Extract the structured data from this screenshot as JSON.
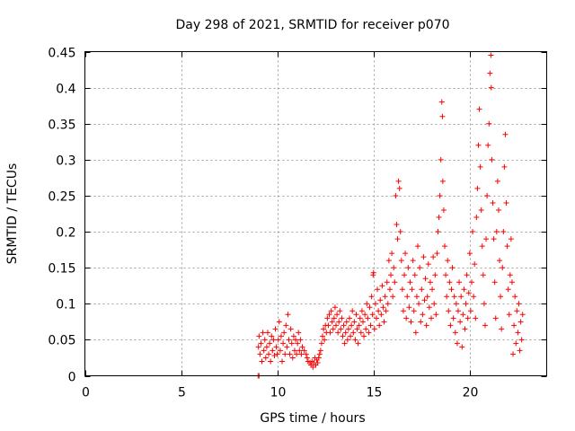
{
  "chart_data": {
    "type": "scatter",
    "title": "Day 298 of 2021, SRMTID for receiver p070",
    "xlabel": "GPS time / hours",
    "ylabel": "SRMTID / TECUs",
    "xlim": [
      0,
      24
    ],
    "ylim": [
      0,
      0.45
    ],
    "xticks": [
      0,
      5,
      10,
      15,
      20
    ],
    "xtick_labels": [
      "0",
      "5",
      "10",
      "15",
      "20"
    ],
    "yticks": [
      0,
      0.05,
      0.1,
      0.15,
      0.2,
      0.25,
      0.3,
      0.35,
      0.4,
      0.45
    ],
    "ytick_labels": [
      "0",
      "0.05",
      "0.1",
      "0.15",
      "0.2",
      "0.25",
      "0.3",
      "0.35",
      "0.4",
      "0.45"
    ],
    "grid": true,
    "marker": "plus",
    "series": [
      {
        "name": "p070",
        "color": "#ff0000",
        "points": [
          [
            9.0,
            0.0
          ],
          [
            9.05,
            0.0
          ],
          [
            9.02,
            0.04
          ],
          [
            9.05,
            0.055
          ],
          [
            9.1,
            0.03
          ],
          [
            9.15,
            0.045
          ],
          [
            9.2,
            0.02
          ],
          [
            9.25,
            0.06
          ],
          [
            9.3,
            0.035
          ],
          [
            9.35,
            0.05
          ],
          [
            9.4,
            0.025
          ],
          [
            9.45,
            0.04
          ],
          [
            9.5,
            0.06
          ],
          [
            9.55,
            0.03
          ],
          [
            9.6,
            0.045
          ],
          [
            9.65,
            0.02
          ],
          [
            9.7,
            0.055
          ],
          [
            9.75,
            0.035
          ],
          [
            9.8,
            0.05
          ],
          [
            9.85,
            0.028
          ],
          [
            9.9,
            0.065
          ],
          [
            9.95,
            0.04
          ],
          [
            10.0,
            0.03
          ],
          [
            10.05,
            0.05
          ],
          [
            10.1,
            0.075
          ],
          [
            10.15,
            0.035
          ],
          [
            10.2,
            0.055
          ],
          [
            10.25,
            0.02
          ],
          [
            10.3,
            0.045
          ],
          [
            10.35,
            0.06
          ],
          [
            10.4,
            0.03
          ],
          [
            10.45,
            0.07
          ],
          [
            10.5,
            0.04
          ],
          [
            10.55,
            0.085
          ],
          [
            10.6,
            0.05
          ],
          [
            10.65,
            0.03
          ],
          [
            10.7,
            0.065
          ],
          [
            10.75,
            0.045
          ],
          [
            10.8,
            0.025
          ],
          [
            10.85,
            0.055
          ],
          [
            10.9,
            0.035
          ],
          [
            10.95,
            0.05
          ],
          [
            11.0,
            0.03
          ],
          [
            11.05,
            0.045
          ],
          [
            11.1,
            0.06
          ],
          [
            11.15,
            0.035
          ],
          [
            11.2,
            0.05
          ],
          [
            11.25,
            0.03
          ],
          [
            11.3,
            0.04
          ],
          [
            11.4,
            0.035
          ],
          [
            11.5,
            0.03
          ],
          [
            11.55,
            0.025
          ],
          [
            11.6,
            0.02
          ],
          [
            11.7,
            0.018
          ],
          [
            11.75,
            0.015
          ],
          [
            11.8,
            0.02
          ],
          [
            11.85,
            0.012
          ],
          [
            11.9,
            0.018
          ],
          [
            11.95,
            0.025
          ],
          [
            12.0,
            0.015
          ],
          [
            12.05,
            0.022
          ],
          [
            12.1,
            0.018
          ],
          [
            12.15,
            0.025
          ],
          [
            12.2,
            0.03
          ],
          [
            12.25,
            0.035
          ],
          [
            12.3,
            0.045
          ],
          [
            12.35,
            0.055
          ],
          [
            12.4,
            0.065
          ],
          [
            12.45,
            0.05
          ],
          [
            12.5,
            0.07
          ],
          [
            12.55,
            0.06
          ],
          [
            12.6,
            0.08
          ],
          [
            12.65,
            0.07
          ],
          [
            12.7,
            0.085
          ],
          [
            12.75,
            0.06
          ],
          [
            12.8,
            0.09
          ],
          [
            12.85,
            0.075
          ],
          [
            12.9,
            0.065
          ],
          [
            12.95,
            0.08
          ],
          [
            13.0,
            0.095
          ],
          [
            13.05,
            0.07
          ],
          [
            13.1,
            0.085
          ],
          [
            13.15,
            0.06
          ],
          [
            13.2,
            0.075
          ],
          [
            13.25,
            0.09
          ],
          [
            13.3,
            0.065
          ],
          [
            13.35,
            0.08
          ],
          [
            13.4,
            0.055
          ],
          [
            13.45,
            0.07
          ],
          [
            13.5,
            0.045
          ],
          [
            13.55,
            0.06
          ],
          [
            13.6,
            0.075
          ],
          [
            13.65,
            0.05
          ],
          [
            13.7,
            0.065
          ],
          [
            13.75,
            0.08
          ],
          [
            13.8,
            0.055
          ],
          [
            13.85,
            0.07
          ],
          [
            13.9,
            0.09
          ],
          [
            13.95,
            0.06
          ],
          [
            14.0,
            0.075
          ],
          [
            14.05,
            0.05
          ],
          [
            14.1,
            0.085
          ],
          [
            14.15,
            0.065
          ],
          [
            14.2,
            0.045
          ],
          [
            14.25,
            0.07
          ],
          [
            14.3,
            0.08
          ],
          [
            14.35,
            0.06
          ],
          [
            14.4,
            0.09
          ],
          [
            14.45,
            0.075
          ],
          [
            14.5,
            0.055
          ],
          [
            14.55,
            0.085
          ],
          [
            14.6,
            0.065
          ],
          [
            14.65,
            0.1
          ],
          [
            14.7,
            0.08
          ],
          [
            14.75,
            0.06
          ],
          [
            14.8,
            0.095
          ],
          [
            14.85,
            0.07
          ],
          [
            14.9,
            0.11
          ],
          [
            14.95,
            0.085
          ],
          [
            15.0,
            0.143
          ],
          [
            14.98,
            0.14
          ],
          [
            15.05,
            0.065
          ],
          [
            15.1,
            0.1
          ],
          [
            15.15,
            0.08
          ],
          [
            15.2,
            0.12
          ],
          [
            15.25,
            0.09
          ],
          [
            15.3,
            0.07
          ],
          [
            15.35,
            0.105
          ],
          [
            15.4,
            0.085
          ],
          [
            15.45,
            0.125
          ],
          [
            15.5,
            0.095
          ],
          [
            15.55,
            0.075
          ],
          [
            15.6,
            0.11
          ],
          [
            15.65,
            0.09
          ],
          [
            15.7,
            0.13
          ],
          [
            15.75,
            0.1
          ],
          [
            15.8,
            0.16
          ],
          [
            15.85,
            0.12
          ],
          [
            15.9,
            0.14
          ],
          [
            15.95,
            0.17
          ],
          [
            16.0,
            0.11
          ],
          [
            16.05,
            0.15
          ],
          [
            16.1,
            0.13
          ],
          [
            16.15,
            0.25
          ],
          [
            16.2,
            0.21
          ],
          [
            16.25,
            0.19
          ],
          [
            16.3,
            0.27
          ],
          [
            16.35,
            0.26
          ],
          [
            16.4,
            0.2
          ],
          [
            16.45,
            0.16
          ],
          [
            16.5,
            0.12
          ],
          [
            16.55,
            0.09
          ],
          [
            16.6,
            0.14
          ],
          [
            16.65,
            0.17
          ],
          [
            16.7,
            0.08
          ],
          [
            16.75,
            0.11
          ],
          [
            16.8,
            0.15
          ],
          [
            16.85,
            0.095
          ],
          [
            16.9,
            0.13
          ],
          [
            16.95,
            0.075
          ],
          [
            17.0,
            0.12
          ],
          [
            17.05,
            0.16
          ],
          [
            17.1,
            0.09
          ],
          [
            17.15,
            0.14
          ],
          [
            17.2,
            0.06
          ],
          [
            17.25,
            0.11
          ],
          [
            17.3,
            0.18
          ],
          [
            17.35,
            0.1
          ],
          [
            17.4,
            0.15
          ],
          [
            17.45,
            0.075
          ],
          [
            17.5,
            0.12
          ],
          [
            17.55,
            0.085
          ],
          [
            17.6,
            0.165
          ],
          [
            17.65,
            0.105
          ],
          [
            17.7,
            0.135
          ],
          [
            17.75,
            0.07
          ],
          [
            17.8,
            0.11
          ],
          [
            17.85,
            0.155
          ],
          [
            17.9,
            0.095
          ],
          [
            17.95,
            0.13
          ],
          [
            18.0,
            0.08
          ],
          [
            18.05,
            0.12
          ],
          [
            18.1,
            0.165
          ],
          [
            18.15,
            0.1
          ],
          [
            18.2,
            0.14
          ],
          [
            18.25,
            0.085
          ],
          [
            18.3,
            0.17
          ],
          [
            18.35,
            0.2
          ],
          [
            18.4,
            0.22
          ],
          [
            18.45,
            0.25
          ],
          [
            18.5,
            0.3
          ],
          [
            18.55,
            0.38
          ],
          [
            18.58,
            0.36
          ],
          [
            18.6,
            0.27
          ],
          [
            18.65,
            0.23
          ],
          [
            18.7,
            0.18
          ],
          [
            18.75,
            0.14
          ],
          [
            18.8,
            0.11
          ],
          [
            18.85,
            0.16
          ],
          [
            18.9,
            0.09
          ],
          [
            18.95,
            0.13
          ],
          [
            19.0,
            0.07
          ],
          [
            19.05,
            0.12
          ],
          [
            19.1,
            0.15
          ],
          [
            19.15,
            0.08
          ],
          [
            19.2,
            0.11
          ],
          [
            19.25,
            0.06
          ],
          [
            19.3,
            0.1
          ],
          [
            19.35,
            0.045
          ],
          [
            19.4,
            0.09
          ],
          [
            19.45,
            0.13
          ],
          [
            19.5,
            0.075
          ],
          [
            19.55,
            0.11
          ],
          [
            19.6,
            0.04
          ],
          [
            19.65,
            0.085
          ],
          [
            19.7,
            0.12
          ],
          [
            19.75,
            0.065
          ],
          [
            19.8,
            0.1
          ],
          [
            19.85,
            0.14
          ],
          [
            19.9,
            0.08
          ],
          [
            19.95,
            0.115
          ],
          [
            20.0,
            0.17
          ],
          [
            20.05,
            0.09
          ],
          [
            20.1,
            0.13
          ],
          [
            20.15,
            0.2
          ],
          [
            20.2,
            0.11
          ],
          [
            20.25,
            0.155
          ],
          [
            20.3,
            0.08
          ],
          [
            20.35,
            0.22
          ],
          [
            20.4,
            0.26
          ],
          [
            20.45,
            0.32
          ],
          [
            20.5,
            0.37
          ],
          [
            20.55,
            0.29
          ],
          [
            20.6,
            0.23
          ],
          [
            20.65,
            0.18
          ],
          [
            20.7,
            0.14
          ],
          [
            20.75,
            0.1
          ],
          [
            20.8,
            0.07
          ],
          [
            20.85,
            0.19
          ],
          [
            20.9,
            0.25
          ],
          [
            20.95,
            0.32
          ],
          [
            21.0,
            0.35
          ],
          [
            21.05,
            0.42
          ],
          [
            21.1,
            0.445
          ],
          [
            21.12,
            0.4
          ],
          [
            21.15,
            0.3
          ],
          [
            21.2,
            0.24
          ],
          [
            21.25,
            0.19
          ],
          [
            21.3,
            0.13
          ],
          [
            21.35,
            0.08
          ],
          [
            21.4,
            0.2
          ],
          [
            21.45,
            0.27
          ],
          [
            21.5,
            0.23
          ],
          [
            21.55,
            0.16
          ],
          [
            21.6,
            0.11
          ],
          [
            21.65,
            0.065
          ],
          [
            21.7,
            0.15
          ],
          [
            21.75,
            0.2
          ],
          [
            21.8,
            0.29
          ],
          [
            21.85,
            0.335
          ],
          [
            21.9,
            0.24
          ],
          [
            21.95,
            0.18
          ],
          [
            22.0,
            0.12
          ],
          [
            22.05,
            0.085
          ],
          [
            22.1,
            0.14
          ],
          [
            22.15,
            0.19
          ],
          [
            22.2,
            0.13
          ],
          [
            22.25,
            0.03
          ],
          [
            22.3,
            0.07
          ],
          [
            22.35,
            0.11
          ],
          [
            22.4,
            0.045
          ],
          [
            22.45,
            0.09
          ],
          [
            22.5,
            0.06
          ],
          [
            22.55,
            0.1
          ],
          [
            22.6,
            0.035
          ],
          [
            22.65,
            0.075
          ],
          [
            22.7,
            0.05
          ],
          [
            22.75,
            0.085
          ]
        ]
      }
    ]
  }
}
